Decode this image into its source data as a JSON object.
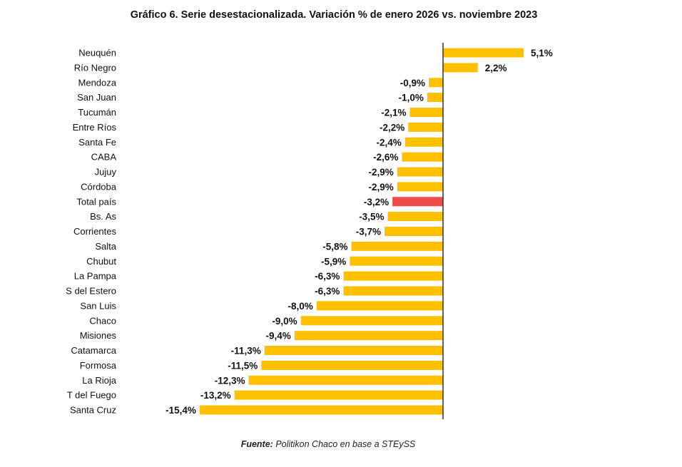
{
  "chart_data": {
    "type": "bar",
    "orientation": "horizontal",
    "title": "Gráfico 6. Serie desestacionalizada. Variación % de enero 2026 vs. noviembre 2023",
    "categories": [
      "Neuquén",
      "Río Negro",
      "Mendoza",
      "San Juan",
      "Tucumán",
      "Entre Ríos",
      "Santa Fe",
      "CABA",
      "Jujuy",
      "Córdoba",
      "Total país",
      "Bs. As",
      "Corrientes",
      "Salta",
      "Chubut",
      "La Pampa",
      "S del Estero",
      "San Luis",
      "Chaco",
      "Misiones",
      "Catamarca",
      "Formosa",
      "La Rioja",
      "T del Fuego",
      "Santa Cruz"
    ],
    "values": [
      5.1,
      2.2,
      -0.9,
      -1.0,
      -2.1,
      -2.2,
      -2.4,
      -2.6,
      -2.9,
      -2.9,
      -3.2,
      -3.5,
      -3.7,
      -5.8,
      -5.9,
      -6.3,
      -6.3,
      -8.0,
      -9.0,
      -9.4,
      -11.3,
      -11.5,
      -12.3,
      -13.2,
      -15.4
    ],
    "data_labels": [
      "5,1%",
      "2,2%",
      "-0,9%",
      "-1,0%",
      "-2,1%",
      "-2,2%",
      "-2,4%",
      "-2,6%",
      "-2,9%",
      "-2,9%",
      "-3,2%",
      "-3,5%",
      "-3,7%",
      "-5,8%",
      "-5,9%",
      "-6,3%",
      "-6,3%",
      "-8,0%",
      "-9,0%",
      "-9,4%",
      "-11,3%",
      "-11,5%",
      "-12,3%",
      "-13,2%",
      "-15,4%"
    ],
    "highlight_category": "Total país",
    "colors": {
      "bar": "#FFC000",
      "highlight": "#EE4B4B",
      "axis": "#333333"
    },
    "grid": false,
    "legend": "none",
    "xlim": [
      -15.4,
      5.1
    ]
  },
  "source": {
    "label": "Fuente:",
    "text": "Politikon Chaco en base a STEySS"
  }
}
